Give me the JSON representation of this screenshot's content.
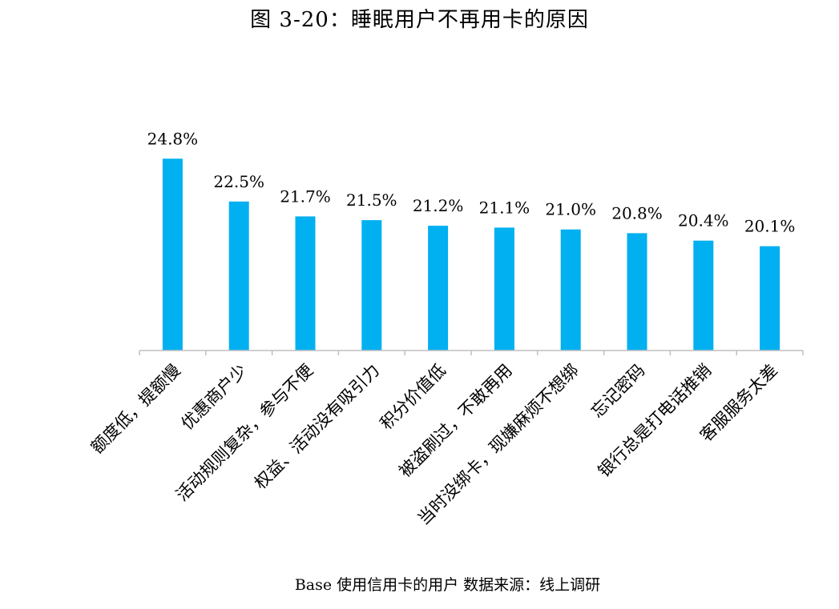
{
  "chart_data": {
    "type": "bar",
    "title": "图 3-20：睡眠用户不再用卡的原因",
    "categories": [
      "额度低，提额慢",
      "优惠商户少",
      "活动规则复杂，参与不便",
      "权益、活动没有吸引力",
      "积分价值低",
      "被盗刷过，不敢再用",
      "当时没绑卡，现嫌麻烦不想绑",
      "忘记密码",
      "银行总是打电话推销",
      "客服服务太差"
    ],
    "values": [
      24.8,
      22.5,
      21.7,
      21.5,
      21.2,
      21.1,
      21.0,
      20.8,
      20.4,
      20.1
    ],
    "value_labels": [
      "24.8%",
      "22.5%",
      "21.7%",
      "21.5%",
      "21.2%",
      "21.1%",
      "21.0%",
      "20.8%",
      "20.4%",
      "20.1%"
    ],
    "unit": "%",
    "xlabel": "",
    "ylabel": "",
    "ylim": [
      14.5,
      25.5
    ],
    "grid": false,
    "bar_color": "#00B0F0",
    "note": "Base 使用信用卡的用户 数据来源：线上调研"
  }
}
